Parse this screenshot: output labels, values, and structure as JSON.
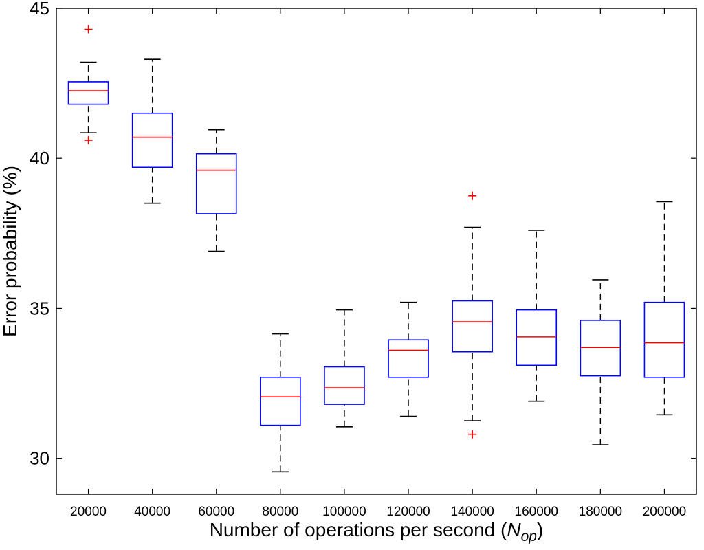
{
  "chart_data": {
    "type": "boxplot",
    "title": "",
    "xlabel": "Number of operations per second (",
    "xlabel_symbol": "N",
    "xlabel_subscript": "op",
    "xlabel_suffix": ")",
    "ylabel": "Error probability (%)",
    "ylim": [
      28.8,
      45
    ],
    "yticks": [
      30,
      35,
      40,
      45
    ],
    "grid": false,
    "colors": {
      "box": "#0000ff",
      "median": "#ff0000",
      "whisker": "#000000",
      "outlier": "#ff0000",
      "axis": "#000000"
    },
    "categories": [
      "20000",
      "40000",
      "60000",
      "80000",
      "100000",
      "120000",
      "140000",
      "160000",
      "180000",
      "200000"
    ],
    "boxes": [
      {
        "category": "20000",
        "whisker_low": 40.85,
        "q1": 41.8,
        "median": 42.25,
        "q3": 42.55,
        "whisker_high": 43.2,
        "outliers": [
          44.3,
          40.6
        ]
      },
      {
        "category": "40000",
        "whisker_low": 38.5,
        "q1": 39.7,
        "median": 40.7,
        "q3": 41.5,
        "whisker_high": 43.3,
        "outliers": []
      },
      {
        "category": "60000",
        "whisker_low": 36.9,
        "q1": 38.15,
        "median": 39.6,
        "q3": 40.15,
        "whisker_high": 40.95,
        "outliers": []
      },
      {
        "category": "80000",
        "whisker_low": 29.55,
        "q1": 31.1,
        "median": 32.05,
        "q3": 32.7,
        "whisker_high": 34.15,
        "outliers": []
      },
      {
        "category": "100000",
        "whisker_low": 31.05,
        "q1": 31.8,
        "median": 32.35,
        "q3": 33.05,
        "whisker_high": 34.95,
        "outliers": []
      },
      {
        "category": "120000",
        "whisker_low": 31.4,
        "q1": 32.7,
        "median": 33.6,
        "q3": 33.95,
        "whisker_high": 35.2,
        "outliers": []
      },
      {
        "category": "140000",
        "whisker_low": 31.25,
        "q1": 33.55,
        "median": 34.55,
        "q3": 35.25,
        "whisker_high": 37.7,
        "outliers": [
          38.75,
          30.8
        ]
      },
      {
        "category": "160000",
        "whisker_low": 31.9,
        "q1": 33.1,
        "median": 34.05,
        "q3": 34.95,
        "whisker_high": 37.6,
        "outliers": []
      },
      {
        "category": "180000",
        "whisker_low": 30.45,
        "q1": 32.75,
        "median": 33.7,
        "q3": 34.6,
        "whisker_high": 35.95,
        "outliers": []
      },
      {
        "category": "200000",
        "whisker_low": 31.45,
        "q1": 32.7,
        "median": 33.85,
        "q3": 35.2,
        "whisker_high": 38.55,
        "outliers": []
      }
    ]
  }
}
